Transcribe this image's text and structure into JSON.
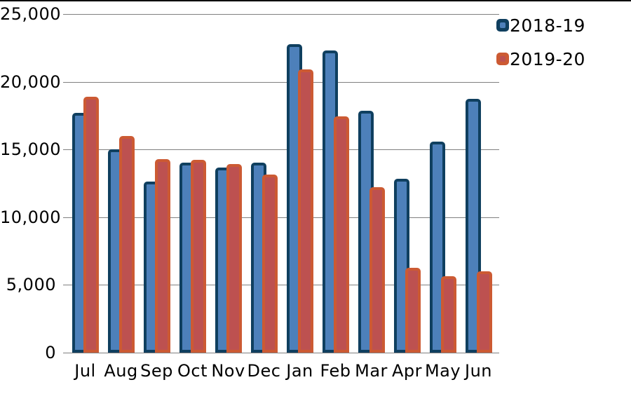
{
  "chart_data": {
    "type": "bar",
    "title": "",
    "xlabel": "",
    "ylabel": "",
    "categories": [
      "Jul",
      "Aug",
      "Sep",
      "Oct",
      "Nov",
      "Dec",
      "Jan",
      "Feb",
      "Mar",
      "Apr",
      "May",
      "Jun"
    ],
    "series": [
      {
        "name": "2018-19",
        "values": [
          17700,
          15000,
          12650,
          14050,
          13650,
          14050,
          22800,
          22300,
          17850,
          12850,
          15600,
          18750
        ],
        "fill_color": "#4d80ba",
        "border_color": "#0f3f5f"
      },
      {
        "name": "2019-20",
        "values": [
          18900,
          16000,
          14300,
          14250,
          13900,
          13150,
          20900,
          17450,
          12200,
          6250,
          5650,
          6000
        ],
        "fill_color": "#bd5150",
        "border_color": "#cc5a33"
      }
    ],
    "ylim": [
      0,
      25000
    ],
    "ytick_step": 5000,
    "ytick_labels": [
      "0",
      "5,000",
      "10,000",
      "15,000",
      "20,000",
      "25,000"
    ],
    "grid": true,
    "gridline_color": "#808080",
    "legend_position": "top-right",
    "frame_top_color": "#000000"
  }
}
